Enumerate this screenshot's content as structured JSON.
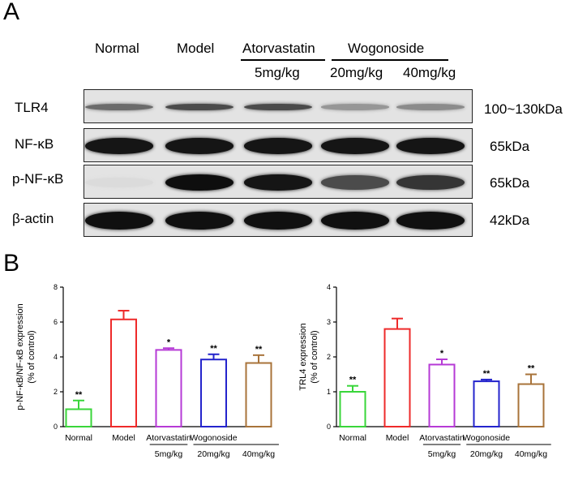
{
  "panel_a": {
    "letter": "A",
    "columns": [
      "Normal",
      "Model",
      "Atorvastatin",
      "Wogonoside"
    ],
    "doses": [
      "5mg/kg",
      "20mg/kg",
      "40mg/kg"
    ],
    "rows": [
      {
        "label": "TLR4",
        "size": "100~130kDa",
        "intensity": [
          0.55,
          0.7,
          0.7,
          0.35,
          0.4
        ]
      },
      {
        "label": "NF-κB",
        "size": "65kDa",
        "intensity": [
          0.95,
          0.95,
          0.95,
          0.95,
          0.95
        ]
      },
      {
        "label": "p-NF-κB",
        "size": "65kDa",
        "intensity": [
          0.03,
          0.98,
          0.95,
          0.7,
          0.8
        ]
      },
      {
        "label": "β-actin",
        "size": "42kDa",
        "intensity": [
          0.97,
          0.97,
          0.97,
          0.97,
          0.97
        ]
      }
    ]
  },
  "panel_b": {
    "letter": "B"
  },
  "chart_data": [
    {
      "type": "bar",
      "ylabel": "p-NF-κB/NF-κB expression\n(% of control)",
      "ylim": [
        0,
        8
      ],
      "yticks": [
        0,
        2,
        4,
        6,
        8
      ],
      "categories": [
        "Normal",
        "Model",
        "Atorvastatin",
        "Wogonoside",
        ""
      ],
      "doses": [
        "",
        "",
        "5mg/kg",
        "20mg/kg",
        "40mg/kg"
      ],
      "values": [
        1.0,
        6.15,
        4.4,
        3.85,
        3.65
      ],
      "errors": [
        0.5,
        0.5,
        0.1,
        0.3,
        0.45
      ],
      "significance": [
        "**",
        "",
        "*",
        "**",
        "**"
      ],
      "colors": [
        "#39d63a",
        "#ee2a2a",
        "#b63ad6",
        "#2424cc",
        "#a8733a"
      ]
    },
    {
      "type": "bar",
      "ylabel": "TRL4 expression\n(% of control)",
      "ylim": [
        0,
        4
      ],
      "yticks": [
        0,
        1,
        2,
        3,
        4
      ],
      "categories": [
        "Normal",
        "Model",
        "Atorvastatin",
        "Wogonoside",
        ""
      ],
      "doses": [
        "",
        "",
        "5mg/kg",
        "20mg/kg",
        "40mg/kg"
      ],
      "values": [
        1.0,
        2.8,
        1.78,
        1.3,
        1.22
      ],
      "errors": [
        0.17,
        0.3,
        0.15,
        0.05,
        0.28
      ],
      "significance": [
        "**",
        "",
        "*",
        "**",
        "**"
      ],
      "colors": [
        "#39d63a",
        "#ee2a2a",
        "#b63ad6",
        "#2424cc",
        "#a8733a"
      ]
    }
  ]
}
